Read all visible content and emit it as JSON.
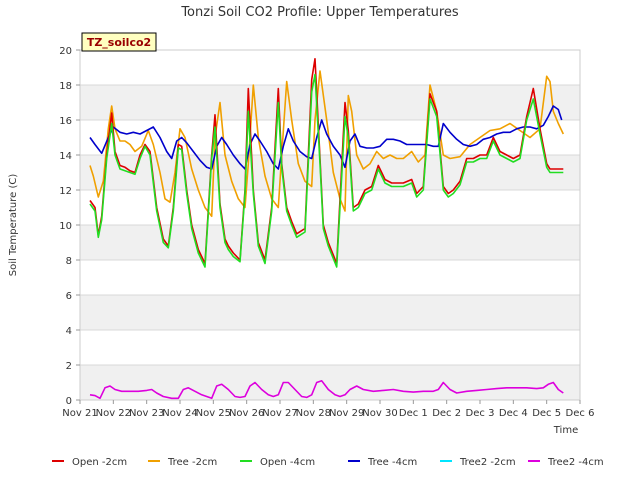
{
  "chart_data": {
    "type": "line",
    "title": "Tonzi Soil CO2 Profile: Upper Temperatures",
    "xlabel": "Time",
    "ylabel": "Soil Temperature (C)",
    "badge": "TZ_soilco2",
    "xlim": [
      0,
      15
    ],
    "ylim": [
      0,
      20
    ],
    "x_ticks": [
      0,
      1,
      2,
      3,
      4,
      5,
      6,
      7,
      8,
      9,
      10,
      11,
      12,
      13,
      14,
      15
    ],
    "x_tick_labels": [
      "Nov 21",
      "Nov 22",
      "Nov 23",
      "Nov 24",
      "Nov 25",
      "Nov 26",
      "Nov 27",
      "Nov 28",
      "Nov 29",
      "Nov 30",
      "Dec 1",
      "Dec 2",
      "Dec 3",
      "Dec 4",
      "Dec 5",
      "Dec 6"
    ],
    "y_ticks": [
      0,
      2,
      4,
      6,
      8,
      10,
      12,
      14,
      16,
      18,
      20
    ],
    "y_tick_labels": [
      "0",
      "2",
      "4",
      "6",
      "8",
      "10",
      "12",
      "14",
      "16",
      "18",
      "20"
    ],
    "grid": "horizontal bands",
    "legend_position": "bottom",
    "series": [
      {
        "name": "Open -2cm",
        "color": "#dd0000",
        "x": [
          0.3,
          0.45,
          0.55,
          0.65,
          0.8,
          0.95,
          1.05,
          1.2,
          1.35,
          1.5,
          1.65,
          1.8,
          1.95,
          2.1,
          2.3,
          2.5,
          2.65,
          2.8,
          2.95,
          3.05,
          3.2,
          3.35,
          3.55,
          3.75,
          3.95,
          4.05,
          4.2,
          4.35,
          4.45,
          4.6,
          4.8,
          4.95,
          5.05,
          5.2,
          5.35,
          5.55,
          5.75,
          5.95,
          6.05,
          6.2,
          6.35,
          6.5,
          6.75,
          6.95,
          7.05,
          7.2,
          7.3,
          7.45,
          7.7,
          7.95,
          8.05,
          8.2,
          8.35,
          8.55,
          8.75,
          8.95,
          9.15,
          9.35,
          9.5,
          9.7,
          9.95,
          10.1,
          10.3,
          10.5,
          10.7,
          10.9,
          11.05,
          11.2,
          11.4,
          11.6,
          11.8,
          12.0,
          12.2,
          12.4,
          12.6,
          12.8,
          13.0,
          13.2,
          13.4,
          13.6,
          13.8,
          14.0,
          14.1,
          14.2,
          14.35,
          14.5
        ],
        "y": [
          11.4,
          11.0,
          9.4,
          10.5,
          14.0,
          16.4,
          14.2,
          13.4,
          13.3,
          13.1,
          13.0,
          14.0,
          14.6,
          14.2,
          11.0,
          9.2,
          8.8,
          11.0,
          14.6,
          14.5,
          12.0,
          10.0,
          8.6,
          7.8,
          14.0,
          16.3,
          11.2,
          9.2,
          8.8,
          8.4,
          8.0,
          12.0,
          17.8,
          12.0,
          9.0,
          8.0,
          11.0,
          17.8,
          13.5,
          11.0,
          10.2,
          9.5,
          9.8,
          18.3,
          19.5,
          13.8,
          10.0,
          9.0,
          7.8,
          17.0,
          15.4,
          11.0,
          11.2,
          12.0,
          12.2,
          13.4,
          12.6,
          12.4,
          12.4,
          12.4,
          12.6,
          11.8,
          12.2,
          17.5,
          16.5,
          12.2,
          11.8,
          12.0,
          12.5,
          13.8,
          13.8,
          14.0,
          14.0,
          15.0,
          14.2,
          14.0,
          13.8,
          14.0,
          16.2,
          17.8,
          15.5,
          13.5,
          13.2,
          13.2,
          13.2,
          13.2
        ]
      },
      {
        "name": "Tree -2cm",
        "color": "#f0a000",
        "x": [
          0.3,
          0.4,
          0.55,
          0.7,
          0.85,
          0.95,
          1.05,
          1.2,
          1.35,
          1.5,
          1.65,
          1.85,
          2.05,
          2.2,
          2.4,
          2.55,
          2.7,
          2.85,
          3.0,
          3.15,
          3.35,
          3.55,
          3.75,
          3.95,
          4.05,
          4.2,
          4.35,
          4.55,
          4.75,
          4.95,
          5.05,
          5.2,
          5.35,
          5.55,
          5.75,
          5.95,
          6.05,
          6.2,
          6.35,
          6.55,
          6.75,
          6.95,
          7.05,
          7.2,
          7.4,
          7.6,
          7.8,
          7.95,
          8.05,
          8.15,
          8.3,
          8.5,
          8.7,
          8.9,
          9.1,
          9.3,
          9.5,
          9.7,
          9.95,
          10.15,
          10.35,
          10.5,
          10.7,
          10.9,
          11.1,
          11.4,
          11.7,
          12.0,
          12.3,
          12.6,
          12.9,
          13.2,
          13.5,
          13.8,
          14.0,
          14.1,
          14.2,
          14.35,
          14.5
        ],
        "y": [
          13.4,
          12.8,
          11.6,
          12.5,
          15.5,
          16.8,
          15.5,
          14.8,
          14.8,
          14.6,
          14.2,
          14.5,
          15.4,
          14.6,
          13.0,
          11.5,
          11.3,
          13.0,
          15.5,
          15.0,
          13.2,
          12.0,
          11.0,
          10.5,
          15.0,
          17.0,
          14.0,
          12.5,
          11.5,
          11.0,
          13.5,
          18.0,
          15.0,
          12.8,
          11.5,
          11.0,
          14.0,
          18.2,
          16.0,
          13.5,
          12.5,
          12.2,
          16.0,
          18.8,
          16.0,
          13.0,
          11.5,
          10.8,
          17.4,
          16.5,
          14.0,
          13.2,
          13.5,
          14.2,
          13.8,
          14.0,
          13.8,
          13.8,
          14.2,
          13.6,
          14.0,
          18.0,
          16.5,
          14.0,
          13.8,
          13.9,
          14.6,
          15.0,
          15.4,
          15.5,
          15.8,
          15.4,
          15.0,
          15.5,
          18.5,
          18.2,
          16.5,
          15.8,
          15.2
        ]
      },
      {
        "name": "Open -4cm",
        "color": "#22dd22",
        "x": [
          0.3,
          0.45,
          0.55,
          0.65,
          0.8,
          0.95,
          1.05,
          1.2,
          1.35,
          1.5,
          1.65,
          1.8,
          1.95,
          2.1,
          2.3,
          2.5,
          2.65,
          2.8,
          2.95,
          3.05,
          3.2,
          3.35,
          3.55,
          3.75,
          3.95,
          4.05,
          4.2,
          4.35,
          4.45,
          4.6,
          4.8,
          4.95,
          5.05,
          5.2,
          5.35,
          5.55,
          5.75,
          5.95,
          6.05,
          6.2,
          6.35,
          6.5,
          6.75,
          6.95,
          7.05,
          7.2,
          7.3,
          7.45,
          7.7,
          7.95,
          8.05,
          8.2,
          8.35,
          8.55,
          8.75,
          8.95,
          9.15,
          9.35,
          9.5,
          9.7,
          9.95,
          10.1,
          10.3,
          10.5,
          10.7,
          10.9,
          11.05,
          11.2,
          11.4,
          11.6,
          11.8,
          12.0,
          12.2,
          12.4,
          12.6,
          12.8,
          13.0,
          13.2,
          13.4,
          13.6,
          13.8,
          14.0,
          14.1,
          14.2,
          14.35,
          14.5
        ],
        "y": [
          11.2,
          10.8,
          9.3,
          10.3,
          13.8,
          15.8,
          14.0,
          13.2,
          13.1,
          13.0,
          12.9,
          13.8,
          14.5,
          14.0,
          10.8,
          9.0,
          8.7,
          10.8,
          14.4,
          14.3,
          11.8,
          9.8,
          8.4,
          7.6,
          13.8,
          15.6,
          11.0,
          9.0,
          8.6,
          8.2,
          7.9,
          11.8,
          16.5,
          11.8,
          8.8,
          7.8,
          10.8,
          17.0,
          13.3,
          10.8,
          10.0,
          9.3,
          9.6,
          17.6,
          18.6,
          13.5,
          9.8,
          8.8,
          7.6,
          16.2,
          15.0,
          10.8,
          11.0,
          11.8,
          12.0,
          13.2,
          12.4,
          12.2,
          12.2,
          12.2,
          12.4,
          11.6,
          12.0,
          17.2,
          16.2,
          12.0,
          11.6,
          11.8,
          12.3,
          13.6,
          13.6,
          13.8,
          13.8,
          14.8,
          14.0,
          13.8,
          13.6,
          13.8,
          16.0,
          17.2,
          15.2,
          13.3,
          13.0,
          13.0,
          13.0,
          13.0
        ]
      },
      {
        "name": "Tree -4cm",
        "color": "#0000cc",
        "x": [
          0.3,
          0.45,
          0.65,
          0.85,
          1.0,
          1.2,
          1.4,
          1.6,
          1.8,
          2.0,
          2.2,
          2.4,
          2.6,
          2.75,
          2.9,
          3.05,
          3.2,
          3.4,
          3.6,
          3.8,
          3.95,
          4.1,
          4.25,
          4.4,
          4.6,
          4.8,
          4.95,
          5.1,
          5.25,
          5.4,
          5.6,
          5.8,
          5.95,
          6.1,
          6.25,
          6.4,
          6.6,
          6.8,
          6.95,
          7.1,
          7.25,
          7.4,
          7.6,
          7.8,
          7.95,
          8.1,
          8.25,
          8.4,
          8.6,
          8.8,
          9.0,
          9.2,
          9.4,
          9.6,
          9.8,
          10.0,
          10.2,
          10.4,
          10.6,
          10.75,
          10.9,
          11.1,
          11.3,
          11.5,
          11.7,
          11.9,
          12.1,
          12.3,
          12.5,
          12.7,
          12.9,
          13.1,
          13.3,
          13.5,
          13.7,
          13.9,
          14.05,
          14.2,
          14.35,
          14.45
        ],
        "y": [
          15.0,
          14.6,
          14.1,
          15.0,
          15.6,
          15.3,
          15.2,
          15.3,
          15.2,
          15.4,
          15.6,
          15.0,
          14.2,
          13.8,
          14.8,
          15.0,
          14.7,
          14.2,
          13.7,
          13.3,
          13.2,
          14.5,
          15.0,
          14.6,
          14.0,
          13.5,
          13.2,
          14.6,
          15.2,
          14.8,
          14.2,
          13.5,
          13.2,
          14.5,
          15.5,
          14.8,
          14.2,
          13.9,
          13.8,
          15.0,
          16.0,
          15.2,
          14.5,
          14.0,
          13.3,
          14.8,
          15.2,
          14.5,
          14.4,
          14.4,
          14.5,
          14.9,
          14.9,
          14.8,
          14.6,
          14.6,
          14.6,
          14.6,
          14.5,
          14.5,
          15.8,
          15.3,
          14.9,
          14.6,
          14.5,
          14.6,
          14.9,
          15.0,
          15.2,
          15.3,
          15.3,
          15.5,
          15.6,
          15.6,
          15.5,
          15.7,
          16.2,
          16.8,
          16.6,
          16.0
        ]
      },
      {
        "name": "Tree2 -2cm",
        "color": "#00e5ff",
        "x": [],
        "y": []
      },
      {
        "name": "Tree2 -4cm",
        "color": "#dd00dd",
        "x": [
          0.3,
          0.45,
          0.6,
          0.75,
          0.9,
          1.05,
          1.25,
          1.5,
          1.75,
          2.0,
          2.15,
          2.3,
          2.5,
          2.75,
          2.95,
          3.1,
          3.25,
          3.45,
          3.65,
          3.8,
          3.95,
          4.1,
          4.25,
          4.45,
          4.65,
          4.8,
          4.95,
          5.1,
          5.25,
          5.45,
          5.65,
          5.8,
          5.95,
          6.1,
          6.25,
          6.45,
          6.65,
          6.8,
          6.95,
          7.1,
          7.25,
          7.45,
          7.65,
          7.8,
          7.95,
          8.1,
          8.3,
          8.5,
          8.8,
          9.1,
          9.4,
          9.7,
          10.0,
          10.3,
          10.6,
          10.75,
          10.9,
          11.1,
          11.3,
          11.6,
          11.9,
          12.2,
          12.5,
          12.8,
          13.1,
          13.4,
          13.7,
          13.9,
          14.05,
          14.2,
          14.35,
          14.5
        ],
        "y": [
          0.3,
          0.25,
          0.1,
          0.7,
          0.8,
          0.6,
          0.5,
          0.5,
          0.5,
          0.55,
          0.6,
          0.4,
          0.2,
          0.1,
          0.1,
          0.6,
          0.7,
          0.5,
          0.3,
          0.2,
          0.1,
          0.8,
          0.9,
          0.6,
          0.2,
          0.15,
          0.2,
          0.8,
          1.0,
          0.6,
          0.3,
          0.2,
          0.3,
          1.0,
          1.0,
          0.6,
          0.2,
          0.15,
          0.3,
          1.0,
          1.1,
          0.6,
          0.3,
          0.2,
          0.3,
          0.6,
          0.8,
          0.6,
          0.5,
          0.55,
          0.6,
          0.5,
          0.45,
          0.5,
          0.5,
          0.6,
          1.0,
          0.6,
          0.4,
          0.5,
          0.55,
          0.6,
          0.65,
          0.7,
          0.7,
          0.7,
          0.65,
          0.7,
          0.9,
          1.0,
          0.6,
          0.4
        ]
      }
    ]
  }
}
